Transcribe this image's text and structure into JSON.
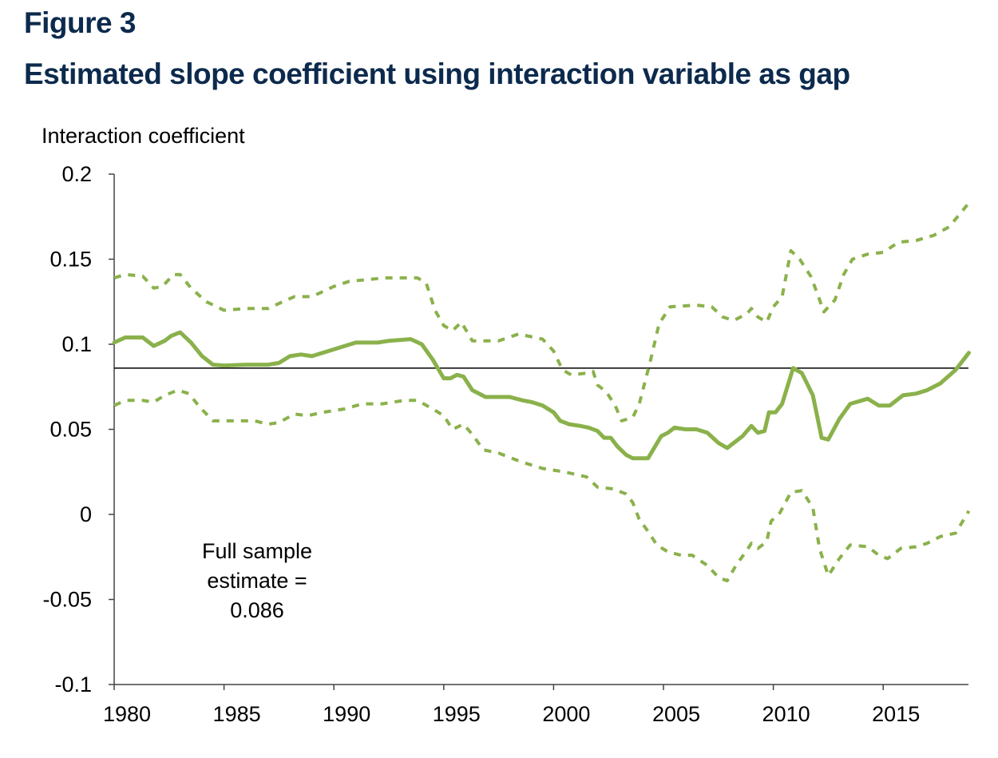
{
  "header": {
    "title": "Figure 3",
    "subtitle": "Estimated slope coefficient using interaction variable as gap"
  },
  "chart_data": {
    "type": "line",
    "title": "Estimated slope coefficient using interaction variable as gap",
    "xlabel": "",
    "ylabel": "Interaction coefficient",
    "xlim": [
      1980,
      2018.9
    ],
    "ylim": [
      -0.1,
      0.2
    ],
    "x_ticks": [
      "1980",
      "1985",
      "1990",
      "1995",
      "2000",
      "2005",
      "2010",
      "2015"
    ],
    "y_ticks": [
      "0.2",
      "0.15",
      "0.1",
      "0.05",
      "0",
      "-0.05",
      "-0.1"
    ],
    "grid": false,
    "legend": "none",
    "colors": {
      "series": "#8ab14b",
      "reference": "#000000",
      "title": "#0c2a4d"
    },
    "reference_line": {
      "value": 0.086
    },
    "annotation": [
      "Full sample",
      "estimate =",
      "0.086"
    ],
    "series": [
      {
        "style": "solid",
        "points": [
          [
            1980,
            0.101
          ],
          [
            1980.5,
            0.104
          ],
          [
            1981.3,
            0.104
          ],
          [
            1981.8,
            0.099
          ],
          [
            1982.3,
            0.102
          ],
          [
            1982.6,
            0.105
          ],
          [
            1983.0,
            0.107
          ],
          [
            1983.5,
            0.101
          ],
          [
            1984,
            0.093
          ],
          [
            1984.5,
            0.088
          ],
          [
            1985,
            0.0875
          ],
          [
            1986,
            0.088
          ],
          [
            1987,
            0.088
          ],
          [
            1987.5,
            0.089
          ],
          [
            1988,
            0.093
          ],
          [
            1988.5,
            0.094
          ],
          [
            1989,
            0.093
          ],
          [
            1990,
            0.097
          ],
          [
            1990.5,
            0.099
          ],
          [
            1991,
            0.101
          ],
          [
            1992,
            0.101
          ],
          [
            1992.5,
            0.102
          ],
          [
            1993.5,
            0.103
          ],
          [
            1994,
            0.1
          ],
          [
            1994.5,
            0.091
          ],
          [
            1995,
            0.08
          ],
          [
            1995.3,
            0.08
          ],
          [
            1995.6,
            0.082
          ],
          [
            1995.9,
            0.081
          ],
          [
            1996.3,
            0.073
          ],
          [
            1996.9,
            0.069
          ],
          [
            1997.5,
            0.069
          ],
          [
            1998,
            0.069
          ],
          [
            1998.6,
            0.067
          ],
          [
            1999,
            0.066
          ],
          [
            1999.5,
            0.064
          ],
          [
            2000,
            0.06
          ],
          [
            2000.3,
            0.055
          ],
          [
            2000.7,
            0.053
          ],
          [
            2001.2,
            0.052
          ],
          [
            2001.6,
            0.051
          ],
          [
            2002,
            0.049
          ],
          [
            2002.3,
            0.045
          ],
          [
            2002.6,
            0.045
          ],
          [
            2002.9,
            0.04
          ],
          [
            2003.3,
            0.035
          ],
          [
            2003.6,
            0.033
          ],
          [
            2004.3,
            0.033
          ],
          [
            2004.9,
            0.046
          ],
          [
            2005.2,
            0.048
          ],
          [
            2005.5,
            0.051
          ],
          [
            2006,
            0.05
          ],
          [
            2006.5,
            0.05
          ],
          [
            2007,
            0.048
          ],
          [
            2007.5,
            0.042
          ],
          [
            2007.9,
            0.039
          ],
          [
            2008.6,
            0.046
          ],
          [
            2009,
            0.052
          ],
          [
            2009.3,
            0.048
          ],
          [
            2009.6,
            0.049
          ],
          [
            2009.8,
            0.06
          ],
          [
            2010.1,
            0.06
          ],
          [
            2010.4,
            0.065
          ],
          [
            2010.9,
            0.086
          ],
          [
            2011.3,
            0.083
          ],
          [
            2011.8,
            0.07
          ],
          [
            2012.2,
            0.045
          ],
          [
            2012.5,
            0.044
          ],
          [
            2013,
            0.056
          ],
          [
            2013.5,
            0.065
          ],
          [
            2014.3,
            0.068
          ],
          [
            2014.8,
            0.064
          ],
          [
            2015.3,
            0.064
          ],
          [
            2015.9,
            0.07
          ],
          [
            2016.5,
            0.071
          ],
          [
            2017,
            0.073
          ],
          [
            2017.6,
            0.077
          ],
          [
            2018.3,
            0.085
          ],
          [
            2018.9,
            0.095
          ]
        ]
      },
      {
        "style": "dashed",
        "points": [
          [
            1980,
            0.139
          ],
          [
            1980.5,
            0.141
          ],
          [
            1981.3,
            0.14
          ],
          [
            1981.8,
            0.133
          ],
          [
            1982.2,
            0.134
          ],
          [
            1982.7,
            0.141
          ],
          [
            1983,
            0.141
          ],
          [
            1983.5,
            0.133
          ],
          [
            1984.2,
            0.125
          ],
          [
            1985,
            0.12
          ],
          [
            1986,
            0.121
          ],
          [
            1987,
            0.121
          ],
          [
            1987.5,
            0.124
          ],
          [
            1988.2,
            0.128
          ],
          [
            1989,
            0.128
          ],
          [
            1989.5,
            0.131
          ],
          [
            1990,
            0.134
          ],
          [
            1990.7,
            0.137
          ],
          [
            1991.5,
            0.138
          ],
          [
            1992.3,
            0.139
          ],
          [
            1993,
            0.139
          ],
          [
            1993.8,
            0.139
          ],
          [
            1994.2,
            0.136
          ],
          [
            1994.6,
            0.12
          ],
          [
            1995,
            0.111
          ],
          [
            1995.4,
            0.108
          ],
          [
            1995.8,
            0.113
          ],
          [
            1996.3,
            0.102
          ],
          [
            1997.5,
            0.102
          ],
          [
            1998.4,
            0.106
          ],
          [
            1999.5,
            0.103
          ],
          [
            2000,
            0.096
          ],
          [
            2000.4,
            0.085
          ],
          [
            2000.8,
            0.082
          ],
          [
            2001.5,
            0.083
          ],
          [
            2001.8,
            0.084
          ],
          [
            2002,
            0.076
          ],
          [
            2002.4,
            0.072
          ],
          [
            2002.8,
            0.064
          ],
          [
            2003.1,
            0.055
          ],
          [
            2003.6,
            0.057
          ],
          [
            2003.9,
            0.065
          ],
          [
            2004.4,
            0.09
          ],
          [
            2004.8,
            0.112
          ],
          [
            2005.3,
            0.122
          ],
          [
            2006.5,
            0.123
          ],
          [
            2007.2,
            0.122
          ],
          [
            2007.7,
            0.116
          ],
          [
            2008.2,
            0.114
          ],
          [
            2008.8,
            0.118
          ],
          [
            2009,
            0.121
          ],
          [
            2009.3,
            0.116
          ],
          [
            2009.7,
            0.113
          ],
          [
            2010,
            0.122
          ],
          [
            2010.4,
            0.128
          ],
          [
            2010.8,
            0.155
          ],
          [
            2011.2,
            0.15
          ],
          [
            2011.7,
            0.14
          ],
          [
            2012,
            0.13
          ],
          [
            2012.3,
            0.119
          ],
          [
            2012.8,
            0.126
          ],
          [
            2013.2,
            0.141
          ],
          [
            2013.6,
            0.15
          ],
          [
            2014.3,
            0.153
          ],
          [
            2015,
            0.154
          ],
          [
            2015.7,
            0.16
          ],
          [
            2016.5,
            0.161
          ],
          [
            2017.3,
            0.164
          ],
          [
            2018,
            0.169
          ],
          [
            2018.9,
            0.183
          ]
        ]
      },
      {
        "style": "dashed",
        "points": [
          [
            1980,
            0.064
          ],
          [
            1980.5,
            0.067
          ],
          [
            1981.3,
            0.067
          ],
          [
            1981.8,
            0.066
          ],
          [
            1982.3,
            0.07
          ],
          [
            1982.9,
            0.073
          ],
          [
            1983.4,
            0.071
          ],
          [
            1983.9,
            0.063
          ],
          [
            1984.5,
            0.055
          ],
          [
            1985,
            0.055
          ],
          [
            1986.4,
            0.055
          ],
          [
            1987,
            0.053
          ],
          [
            1987.5,
            0.054
          ],
          [
            1988.2,
            0.059
          ],
          [
            1988.8,
            0.058
          ],
          [
            1989.5,
            0.06
          ],
          [
            1990.5,
            0.062
          ],
          [
            1991.3,
            0.065
          ],
          [
            1992.2,
            0.065
          ],
          [
            1993.2,
            0.067
          ],
          [
            1993.8,
            0.067
          ],
          [
            1994.5,
            0.062
          ],
          [
            1995,
            0.058
          ],
          [
            1995.4,
            0.05
          ],
          [
            1995.9,
            0.053
          ],
          [
            1996.3,
            0.047
          ],
          [
            1996.8,
            0.038
          ],
          [
            1997.5,
            0.036
          ],
          [
            1998.5,
            0.031
          ],
          [
            1999.5,
            0.027
          ],
          [
            2000.5,
            0.025
          ],
          [
            2001.5,
            0.022
          ],
          [
            2002,
            0.016
          ],
          [
            2002.7,
            0.015
          ],
          [
            2003.3,
            0.012
          ],
          [
            2003.6,
            0.007
          ],
          [
            2003.9,
            -0.003
          ],
          [
            2004.3,
            -0.01
          ],
          [
            2004.7,
            -0.018
          ],
          [
            2005.2,
            -0.022
          ],
          [
            2005.8,
            -0.024
          ],
          [
            2006.3,
            -0.024
          ],
          [
            2007,
            -0.03
          ],
          [
            2007.5,
            -0.037
          ],
          [
            2007.9,
            -0.039
          ],
          [
            2008.3,
            -0.03
          ],
          [
            2008.8,
            -0.021
          ],
          [
            2009,
            -0.017
          ],
          [
            2009.3,
            -0.02
          ],
          [
            2009.7,
            -0.016
          ],
          [
            2009.9,
            -0.004
          ],
          [
            2010.3,
            0.001
          ],
          [
            2010.8,
            0.013
          ],
          [
            2011.3,
            0.014
          ],
          [
            2011.8,
            0.004
          ],
          [
            2012.1,
            -0.02
          ],
          [
            2012.5,
            -0.036
          ],
          [
            2013,
            -0.026
          ],
          [
            2013.5,
            -0.018
          ],
          [
            2014.3,
            -0.019
          ],
          [
            2014.8,
            -0.024
          ],
          [
            2015.2,
            -0.026
          ],
          [
            2015.8,
            -0.02
          ],
          [
            2016.5,
            -0.019
          ],
          [
            2017,
            -0.017
          ],
          [
            2017.6,
            -0.013
          ],
          [
            2018.3,
            -0.011
          ],
          [
            2018.9,
            0.002
          ]
        ]
      }
    ]
  }
}
